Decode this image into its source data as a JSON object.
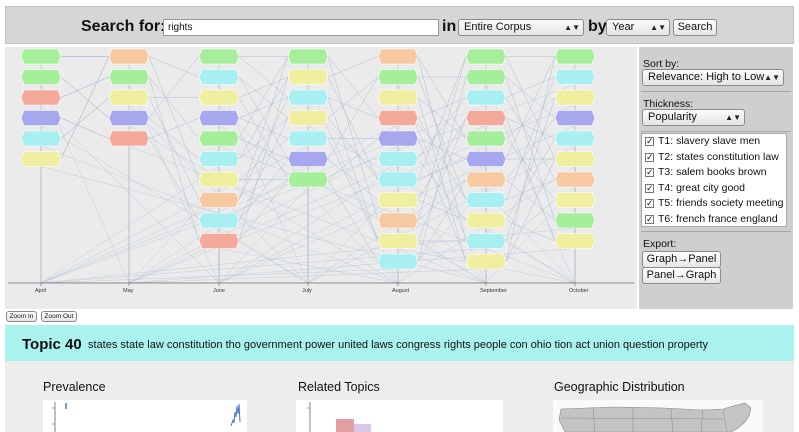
{
  "search": {
    "label": "Search for:",
    "value": "rights",
    "in_label": "in",
    "corpus_selected": "Entire Corpus",
    "by_label": "by",
    "unit_selected": "Year",
    "button": "Search"
  },
  "graph": {
    "months": [
      "April",
      "May",
      "June",
      "July",
      "August",
      "September",
      "October"
    ],
    "columns": [
      [
        "#a6ef9a",
        "#a6ef9a",
        "#f5a99b",
        "#a7a7ef",
        "#a7eff0",
        "#f0ee9f"
      ],
      [
        "#f7c9a0",
        "#a6ef9a",
        "#f0ee9f",
        "#a7a7ef",
        "#f5a99b"
      ],
      [
        "#a6ef9a",
        "#a7eff0",
        "#f0ee9f",
        "#a7a7ef",
        "#a6ef9a",
        "#a7eff0",
        "#f0ee9f",
        "#f7c9a0",
        "#a7eff0",
        "#f5a99b"
      ],
      [
        "#a6ef9a",
        "#f0ee9f",
        "#a7eff0",
        "#f0ee9f",
        "#a7eff0",
        "#a7a7ef",
        "#a6ef9a"
      ],
      [
        "#f7c9a0",
        "#a6ef9a",
        "#f0ee9f",
        "#f5a99b",
        "#a7a7ef",
        "#a7eff0",
        "#a7eff0",
        "#f0ee9f",
        "#f7c9a0",
        "#f0ee9f",
        "#a7eff0"
      ],
      [
        "#a6ef9a",
        "#a6ef9a",
        "#a7eff0",
        "#f5a99b",
        "#a6ef9a",
        "#a7a7ef",
        "#f7c9a0",
        "#a7eff0",
        "#f0ee9f",
        "#a7eff0",
        "#f0ee9f"
      ],
      [
        "#a6ef9a",
        "#a7eff0",
        "#f0ee9f",
        "#a7a7ef",
        "#a7eff0",
        "#f0ee9f",
        "#f7c9a0",
        "#f0ee9f",
        "#a6ef9a",
        "#f0ee9f"
      ]
    ]
  },
  "zoom": {
    "in": "Zoom In",
    "out": "Zoom Out"
  },
  "side": {
    "sort_label": "Sort by:",
    "sort_selected": "Relevance: High to Low",
    "thickness_label": "Thickness:",
    "thickness_selected": "Popularity",
    "topics": [
      "T1: slavery slave men",
      "T2: states constitution law",
      "T3: salem books brown",
      "T4: great city good",
      "T5: friends society meeting",
      "T6: french france england"
    ],
    "export_label": "Export:",
    "graph_to_panel": "Graph→Panel",
    "panel_to_graph": "Panel→Graph"
  },
  "topic": {
    "title": "Topic 40",
    "words": "states state law constitution tho government power united laws congress rights people con ohio tion act union question property"
  },
  "panels": {
    "prevalence": "Prevalence",
    "related": "Related Topics",
    "geographic": "Geographic Distribution"
  }
}
